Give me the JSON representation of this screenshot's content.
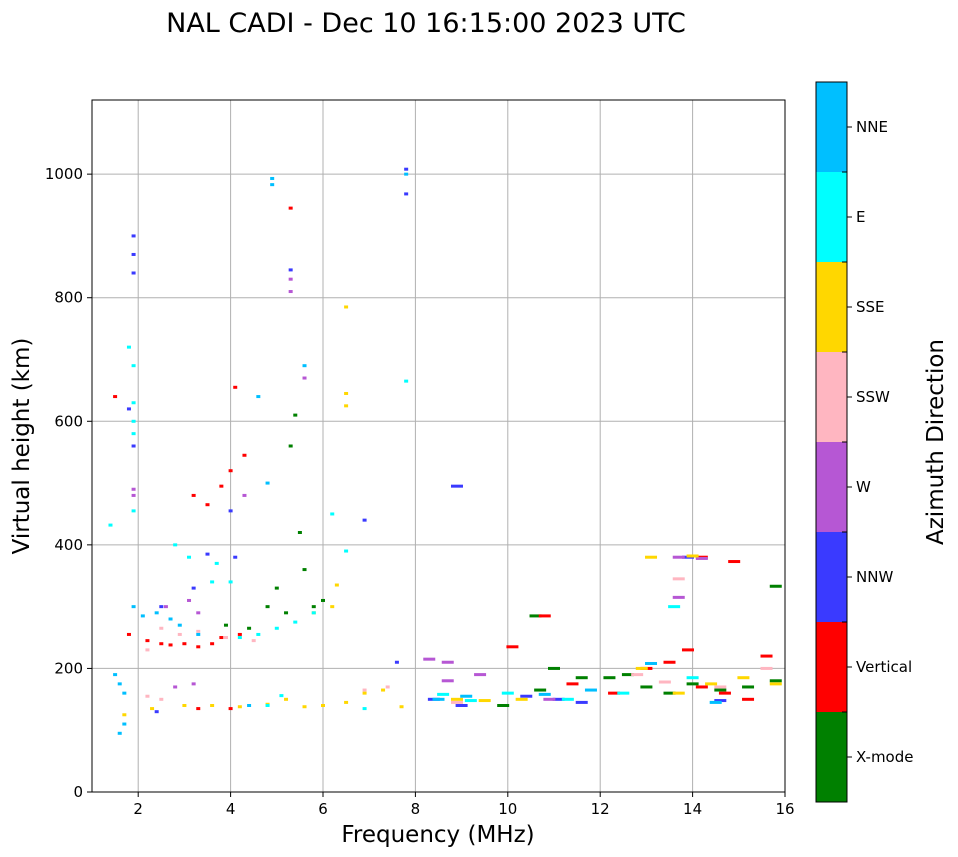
{
  "chart_data": {
    "type": "scatter",
    "title": "NAL CADI - Dec 10 16:15:00 2023 UTC",
    "xlabel": "Frequency (MHz)",
    "ylabel": "Virtual height (km)",
    "xlim": [
      1,
      16
    ],
    "ylim": [
      0,
      1120
    ],
    "xticks": [
      2,
      4,
      6,
      8,
      10,
      12,
      14,
      16
    ],
    "yticks": [
      0,
      200,
      400,
      600,
      800,
      1000
    ],
    "grid": true,
    "colorbar": {
      "label": "Azimuth Direction",
      "categories": [
        {
          "name": "X-mode",
          "color": "#008000"
        },
        {
          "name": "Vertical",
          "color": "#ff0000"
        },
        {
          "name": "NNW",
          "color": "#3a3aff"
        },
        {
          "name": "W",
          "color": "#b657d4"
        },
        {
          "name": "SSW",
          "color": "#ffb6c1"
        },
        {
          "name": "SSE",
          "color": "#ffd700"
        },
        {
          "name": "E",
          "color": "#00ffff"
        },
        {
          "name": "NNE",
          "color": "#00bfff"
        }
      ]
    },
    "series": [
      {
        "name": "X-mode",
        "points": [
          [
            3.9,
            270
          ],
          [
            4.4,
            265
          ],
          [
            4.8,
            300
          ],
          [
            5.0,
            330
          ],
          [
            5.2,
            290
          ],
          [
            5.3,
            560
          ],
          [
            5.4,
            610
          ],
          [
            5.5,
            420
          ],
          [
            5.6,
            360
          ],
          [
            5.8,
            300
          ],
          [
            6.0,
            310
          ],
          [
            10.6,
            285
          ],
          [
            11.0,
            200
          ],
          [
            11.6,
            185
          ],
          [
            12.2,
            185
          ],
          [
            12.6,
            190
          ],
          [
            13.0,
            170
          ],
          [
            13.5,
            160
          ],
          [
            14.0,
            175
          ],
          [
            14.6,
            165
          ],
          [
            15.2,
            170
          ],
          [
            15.8,
            180
          ],
          [
            15.8,
            333
          ],
          [
            9.9,
            140
          ],
          [
            10.7,
            165
          ]
        ]
      },
      {
        "name": "Vertical",
        "points": [
          [
            1.5,
            640
          ],
          [
            1.8,
            255
          ],
          [
            2.2,
            245
          ],
          [
            2.5,
            240
          ],
          [
            2.7,
            238
          ],
          [
            3.0,
            240
          ],
          [
            3.3,
            235
          ],
          [
            3.6,
            240
          ],
          [
            3.8,
            250
          ],
          [
            4.0,
            520
          ],
          [
            4.1,
            655
          ],
          [
            4.3,
            545
          ],
          [
            4.2,
            255
          ],
          [
            3.2,
            480
          ],
          [
            3.5,
            465
          ],
          [
            3.8,
            495
          ],
          [
            4.0,
            135
          ],
          [
            3.3,
            135
          ],
          [
            5.3,
            945
          ],
          [
            10.1,
            235
          ],
          [
            10.8,
            285
          ],
          [
            11.4,
            175
          ],
          [
            12.3,
            160
          ],
          [
            13.0,
            200
          ],
          [
            13.5,
            210
          ],
          [
            13.9,
            230
          ],
          [
            14.2,
            170
          ],
          [
            14.7,
            160
          ],
          [
            15.2,
            150
          ],
          [
            15.6,
            220
          ],
          [
            14.2,
            380
          ],
          [
            14.9,
            373
          ]
        ]
      },
      {
        "name": "NNW",
        "points": [
          [
            1.9,
            900
          ],
          [
            1.9,
            870
          ],
          [
            1.9,
            840
          ],
          [
            1.8,
            620
          ],
          [
            1.9,
            560
          ],
          [
            2.5,
            300
          ],
          [
            3.2,
            330
          ],
          [
            3.5,
            385
          ],
          [
            4.1,
            380
          ],
          [
            4.0,
            455
          ],
          [
            5.3,
            845
          ],
          [
            7.8,
            1008
          ],
          [
            7.8,
            968
          ],
          [
            6.9,
            440
          ],
          [
            8.9,
            495
          ],
          [
            7.6,
            210
          ],
          [
            8.4,
            150
          ],
          [
            9.0,
            140
          ],
          [
            10.4,
            155
          ],
          [
            11.1,
            150
          ],
          [
            11.6,
            145
          ],
          [
            13.9,
            380
          ],
          [
            14.6,
            148
          ],
          [
            2.4,
            130
          ]
        ]
      },
      {
        "name": "W",
        "points": [
          [
            1.9,
            490
          ],
          [
            1.9,
            480
          ],
          [
            2.8,
            170
          ],
          [
            3.2,
            175
          ],
          [
            2.6,
            300
          ],
          [
            3.1,
            310
          ],
          [
            3.3,
            290
          ],
          [
            4.3,
            480
          ],
          [
            5.3,
            830
          ],
          [
            5.3,
            810
          ],
          [
            5.6,
            670
          ],
          [
            8.3,
            215
          ],
          [
            8.7,
            210
          ],
          [
            9.4,
            190
          ],
          [
            10.9,
            150
          ],
          [
            13.7,
            380
          ],
          [
            13.7,
            315
          ],
          [
            14.2,
            378
          ],
          [
            8.7,
            180
          ]
        ]
      },
      {
        "name": "SSW",
        "points": [
          [
            2.2,
            230
          ],
          [
            2.5,
            265
          ],
          [
            2.9,
            255
          ],
          [
            3.3,
            260
          ],
          [
            3.9,
            250
          ],
          [
            4.5,
            245
          ],
          [
            2.2,
            155
          ],
          [
            2.5,
            150
          ],
          [
            6.9,
            165
          ],
          [
            7.4,
            170
          ],
          [
            8.9,
            145
          ],
          [
            12.8,
            190
          ],
          [
            13.4,
            178
          ],
          [
            13.7,
            345
          ],
          [
            14.6,
            170
          ],
          [
            15.6,
            200
          ]
        ]
      },
      {
        "name": "SSE",
        "points": [
          [
            6.5,
            785
          ],
          [
            6.5,
            645
          ],
          [
            6.5,
            625
          ],
          [
            6.3,
            335
          ],
          [
            6.2,
            300
          ],
          [
            5.8,
            290
          ],
          [
            1.7,
            125
          ],
          [
            2.3,
            135
          ],
          [
            3.0,
            140
          ],
          [
            3.6,
            140
          ],
          [
            4.2,
            138
          ],
          [
            4.8,
            142
          ],
          [
            5.2,
            150
          ],
          [
            5.6,
            138
          ],
          [
            6.0,
            140
          ],
          [
            6.5,
            145
          ],
          [
            6.9,
            160
          ],
          [
            7.3,
            165
          ],
          [
            7.7,
            138
          ],
          [
            8.9,
            150
          ],
          [
            9.5,
            148
          ],
          [
            10.3,
            150
          ],
          [
            12.9,
            200
          ],
          [
            13.1,
            380
          ],
          [
            13.7,
            160
          ],
          [
            14.0,
            382
          ],
          [
            14.4,
            175
          ],
          [
            15.1,
            185
          ],
          [
            15.8,
            175
          ]
        ]
      },
      {
        "name": "E",
        "points": [
          [
            1.8,
            720
          ],
          [
            1.9,
            690
          ],
          [
            1.9,
            630
          ],
          [
            1.9,
            600
          ],
          [
            1.9,
            580
          ],
          [
            1.4,
            432
          ],
          [
            1.9,
            455
          ],
          [
            2.8,
            400
          ],
          [
            3.1,
            380
          ],
          [
            3.6,
            340
          ],
          [
            3.7,
            370
          ],
          [
            4.0,
            340
          ],
          [
            4.2,
            250
          ],
          [
            4.6,
            255
          ],
          [
            5.0,
            265
          ],
          [
            5.4,
            275
          ],
          [
            5.8,
            290
          ],
          [
            6.2,
            450
          ],
          [
            6.5,
            390
          ],
          [
            6.9,
            135
          ],
          [
            7.8,
            665
          ],
          [
            4.8,
            140
          ],
          [
            5.1,
            156
          ],
          [
            8.6,
            158
          ],
          [
            9.2,
            148
          ],
          [
            10.0,
            160
          ],
          [
            11.3,
            150
          ],
          [
            12.5,
            160
          ],
          [
            13.6,
            300
          ],
          [
            14.0,
            185
          ]
        ]
      },
      {
        "name": "NNE",
        "points": [
          [
            4.9,
            993
          ],
          [
            4.9,
            983
          ],
          [
            7.8,
            1000
          ],
          [
            5.6,
            690
          ],
          [
            1.5,
            190
          ],
          [
            1.6,
            175
          ],
          [
            1.7,
            160
          ],
          [
            1.6,
            95
          ],
          [
            1.7,
            110
          ],
          [
            1.9,
            300
          ],
          [
            2.1,
            285
          ],
          [
            2.4,
            290
          ],
          [
            2.7,
            280
          ],
          [
            2.9,
            270
          ],
          [
            3.3,
            255
          ],
          [
            4.4,
            140
          ],
          [
            4.6,
            640
          ],
          [
            4.8,
            500
          ],
          [
            8.5,
            150
          ],
          [
            9.1,
            155
          ],
          [
            10.8,
            158
          ],
          [
            11.8,
            165
          ],
          [
            13.1,
            208
          ],
          [
            14.5,
            145
          ]
        ]
      }
    ]
  }
}
